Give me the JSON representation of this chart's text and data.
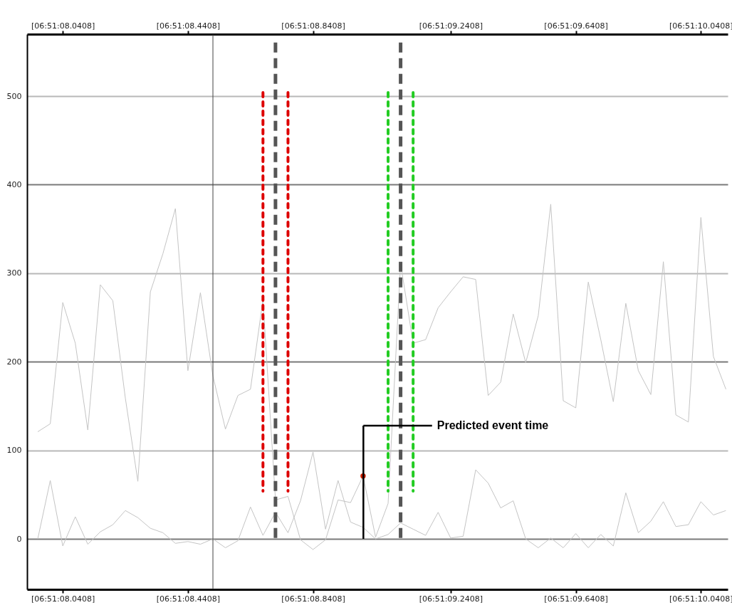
{
  "chart_data": {
    "type": "line",
    "categories": [
      null,
      null,
      "[06:51:08.0408]",
      null,
      null,
      null,
      null,
      null,
      null,
      null,
      null,
      null,
      "[06:51:08.4408]",
      null,
      null,
      null,
      null,
      null,
      null,
      null,
      null,
      null,
      "[06:51:08.8408]",
      null,
      null,
      null,
      null,
      null,
      null,
      null,
      null,
      null,
      null,
      "[06:51:09.2408]",
      null,
      null,
      null,
      null,
      null,
      null,
      null,
      null,
      null,
      "[06:51:09.6408]",
      null,
      null,
      null,
      null,
      null,
      null,
      null,
      null,
      null,
      "[06:51:10.0408]",
      null,
      null
    ],
    "series": [
      {
        "color": "#c4c4c4",
        "values": [
          121,
          130,
          267,
          221,
          123,
          287,
          269,
          159,
          65,
          279,
          322,
          373,
          190,
          278,
          184,
          124,
          162,
          169,
          270,
          44,
          48,
          -1,
          -12,
          -1,
          44,
          41,
          71,
          2,
          40,
          311,
          221,
          225,
          261,
          279,
          296,
          293,
          162,
          177,
          254,
          199,
          252,
          378,
          156,
          148,
          290,
          225,
          155,
          266,
          190,
          163,
          313,
          140,
          132,
          363,
          206,
          169
        ]
      },
      {
        "color": "#c4c4c4",
        "values": [
          0,
          66,
          -8,
          25,
          -6,
          8,
          16,
          32,
          24,
          12,
          7,
          -5,
          -3,
          -6,
          0,
          -10,
          -2,
          36,
          4,
          30,
          7,
          43,
          98,
          11,
          66,
          19,
          13,
          0,
          5,
          18,
          11,
          4,
          30,
          1,
          3,
          78,
          63,
          35,
          43,
          0,
          -10,
          1,
          -10,
          6,
          -10,
          5,
          -8,
          52,
          7,
          20,
          42,
          14,
          16,
          42,
          27,
          32
        ]
      },
      {
        "type": "scatter",
        "color": "#cc2200",
        "values": [
          null,
          null,
          null,
          null,
          null,
          null,
          null,
          null,
          null,
          null,
          null,
          null,
          null,
          null,
          null,
          null,
          null,
          null,
          null,
          null,
          null,
          null,
          null,
          null,
          null,
          null,
          71,
          null,
          null,
          null,
          null,
          null,
          null,
          null,
          null,
          null,
          null,
          null,
          null,
          null,
          null,
          null,
          null,
          null,
          null,
          null,
          null,
          null,
          null,
          null,
          null,
          null,
          null,
          null,
          null,
          null
        ]
      }
    ],
    "ylim": [
      -57,
      570
    ],
    "yticks": [
      0,
      100,
      200,
      300,
      400,
      500
    ],
    "grid": true,
    "annotations": [
      "Predicted event time"
    ]
  }
}
